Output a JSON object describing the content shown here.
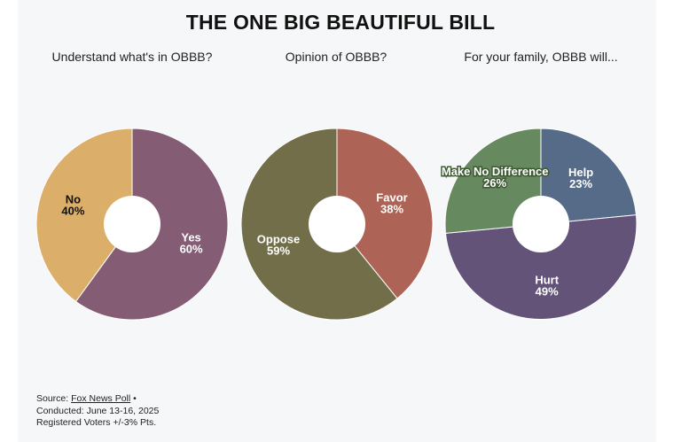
{
  "title": "THE ONE BIG BEAUTIFUL BILL",
  "chart_data": [
    {
      "type": "pie",
      "title": "Understand what's in OBBB?",
      "slices": [
        {
          "label": "Yes",
          "value": 60,
          "display": "60%",
          "color": "#845c74"
        },
        {
          "label": "No",
          "value": 40,
          "display": "40%",
          "color": "#dbae6a"
        }
      ]
    },
    {
      "type": "pie",
      "title": "Opinion of OBBB?",
      "slices": [
        {
          "label": "Favor",
          "value": 38,
          "display": "38%",
          "color": "#ad6456"
        },
        {
          "label": "Oppose",
          "value": 59,
          "display": "59%",
          "color": "#726e4a"
        }
      ]
    },
    {
      "type": "pie",
      "title": "For your family, OBBB will...",
      "slices": [
        {
          "label": "Help",
          "value": 23,
          "display": "23%",
          "color": "#566b88"
        },
        {
          "label": "Hurt",
          "value": 49,
          "display": "49%",
          "color": "#635378"
        },
        {
          "label": "Make No Difference",
          "value": 26,
          "display": "26%",
          "color": "#67895f"
        }
      ]
    }
  ],
  "source": {
    "prefix": "Source: ",
    "link": "Fox News Poll",
    "bullet": " •",
    "conducted": "Conducted: June 13-16, 2025",
    "note": "Registered Voters +/-3% Pts."
  }
}
